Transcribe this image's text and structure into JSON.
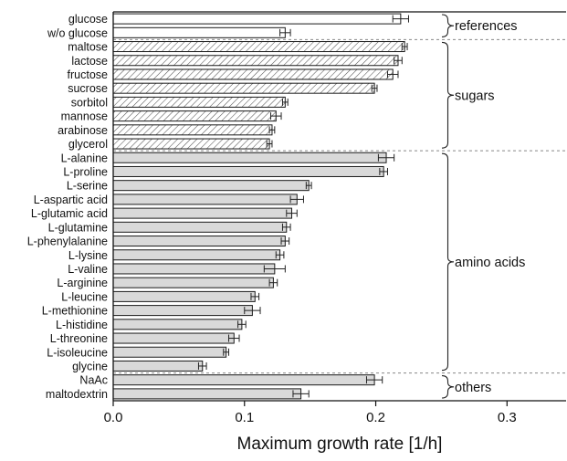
{
  "chart_data": {
    "type": "bar",
    "orientation": "horizontal",
    "xlabel": "Maximum growth rate [1/h]",
    "xlim": [
      0.0,
      0.345
    ],
    "xticks": [
      0.0,
      0.1,
      0.2,
      0.3
    ],
    "xtick_labels": [
      "0.0",
      "0.1",
      "0.2",
      "0.3"
    ],
    "grid": false,
    "categories": [
      "glucose",
      "w/o glucose",
      "maltose",
      "lactose",
      "fructose",
      "sucrose",
      "sorbitol",
      "mannose",
      "arabinose",
      "glycerol",
      "L-alanine",
      "L-proline",
      "L-serine",
      "L-aspartic acid",
      "L-glutamic acid",
      "L-glutamine",
      "L-phenylalanine",
      "L-lysine",
      "L-valine",
      "L-arginine",
      "L-leucine",
      "L-methionine",
      "L-histidine",
      "L-threonine",
      "L-isoleucine",
      "glycine",
      "NaAc",
      "maltodextrin"
    ],
    "values": [
      0.219,
      0.131,
      0.222,
      0.217,
      0.213,
      0.199,
      0.131,
      0.124,
      0.121,
      0.119,
      0.208,
      0.206,
      0.149,
      0.14,
      0.136,
      0.132,
      0.131,
      0.127,
      0.123,
      0.122,
      0.108,
      0.106,
      0.098,
      0.092,
      0.086,
      0.068,
      0.199,
      0.143
    ],
    "errors": [
      0.006,
      0.004,
      0.002,
      0.003,
      0.004,
      0.002,
      0.002,
      0.004,
      0.002,
      0.002,
      0.006,
      0.003,
      0.002,
      0.005,
      0.004,
      0.003,
      0.003,
      0.003,
      0.008,
      0.003,
      0.003,
      0.006,
      0.003,
      0.004,
      0.002,
      0.003,
      0.006,
      0.006
    ],
    "fill": [
      "white",
      "white",
      "hatched",
      "hatched",
      "hatched",
      "hatched",
      "hatched",
      "hatched",
      "hatched",
      "hatched",
      "grey",
      "grey",
      "grey",
      "grey",
      "grey",
      "grey",
      "grey",
      "grey",
      "grey",
      "grey",
      "grey",
      "grey",
      "grey",
      "grey",
      "grey",
      "grey",
      "grey",
      "grey"
    ],
    "groups": [
      {
        "label": "references",
        "start": 0,
        "end": 1
      },
      {
        "label": "sugars",
        "start": 2,
        "end": 9
      },
      {
        "label": "amino acids",
        "start": 10,
        "end": 25
      },
      {
        "label": "others",
        "start": 26,
        "end": 27
      }
    ],
    "colors": {
      "bar_edge": "#1a1a1a",
      "grey_fill": "#d9d9d9",
      "white_fill": "#ffffff",
      "hatch": "#555555",
      "separator": "#888888"
    }
  }
}
